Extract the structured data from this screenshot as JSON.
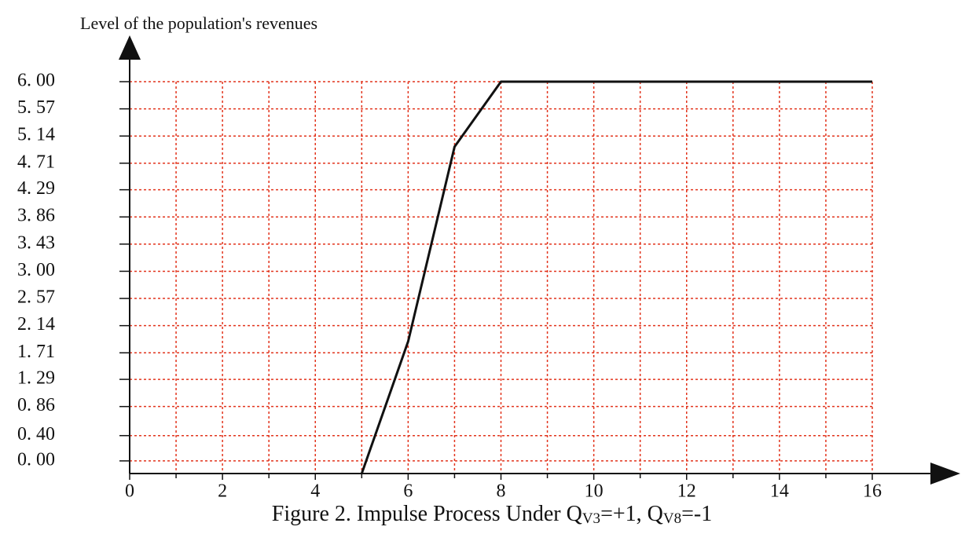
{
  "chart_data": {
    "type": "line",
    "title_parts": [
      "Figure 2. Impulse Process Under Q",
      "V3",
      "=+1, Q",
      "V8",
      "=-1"
    ],
    "y_label": "Level of the population's revenues",
    "x": [
      5,
      6,
      7,
      8,
      16
    ],
    "values": [
      -0.2,
      1.89,
      4.97,
      6.0,
      6.0
    ],
    "color": "#111111",
    "xlim": [
      0,
      16
    ],
    "xticks": [
      0,
      2,
      4,
      6,
      8,
      10,
      12,
      14,
      16
    ],
    "xminor": [
      1,
      3,
      5,
      7,
      9,
      11,
      13,
      15
    ],
    "ylim": [
      -0.2,
      6
    ],
    "yticks": [
      {
        "value": 0,
        "label": "0. 00"
      },
      {
        "value": 0.4,
        "label": "0. 40"
      },
      {
        "value": 0.86,
        "label": "0. 86"
      },
      {
        "value": 1.29,
        "label": "1. 29"
      },
      {
        "value": 1.71,
        "label": "1. 71"
      },
      {
        "value": 2.14,
        "label": "2. 14"
      },
      {
        "value": 2.57,
        "label": "2. 57"
      },
      {
        "value": 3.0,
        "label": "3. 00"
      },
      {
        "value": 3.43,
        "label": "3. 43"
      },
      {
        "value": 3.86,
        "label": "3. 86"
      },
      {
        "value": 4.29,
        "label": "4. 29"
      },
      {
        "value": 4.71,
        "label": "4. 71"
      },
      {
        "value": 5.14,
        "label": "5. 14"
      },
      {
        "value": 5.57,
        "label": "5. 57"
      },
      {
        "value": 6.0,
        "label": "6. 00"
      }
    ],
    "grid": true,
    "grid_color": "#e2341d"
  }
}
